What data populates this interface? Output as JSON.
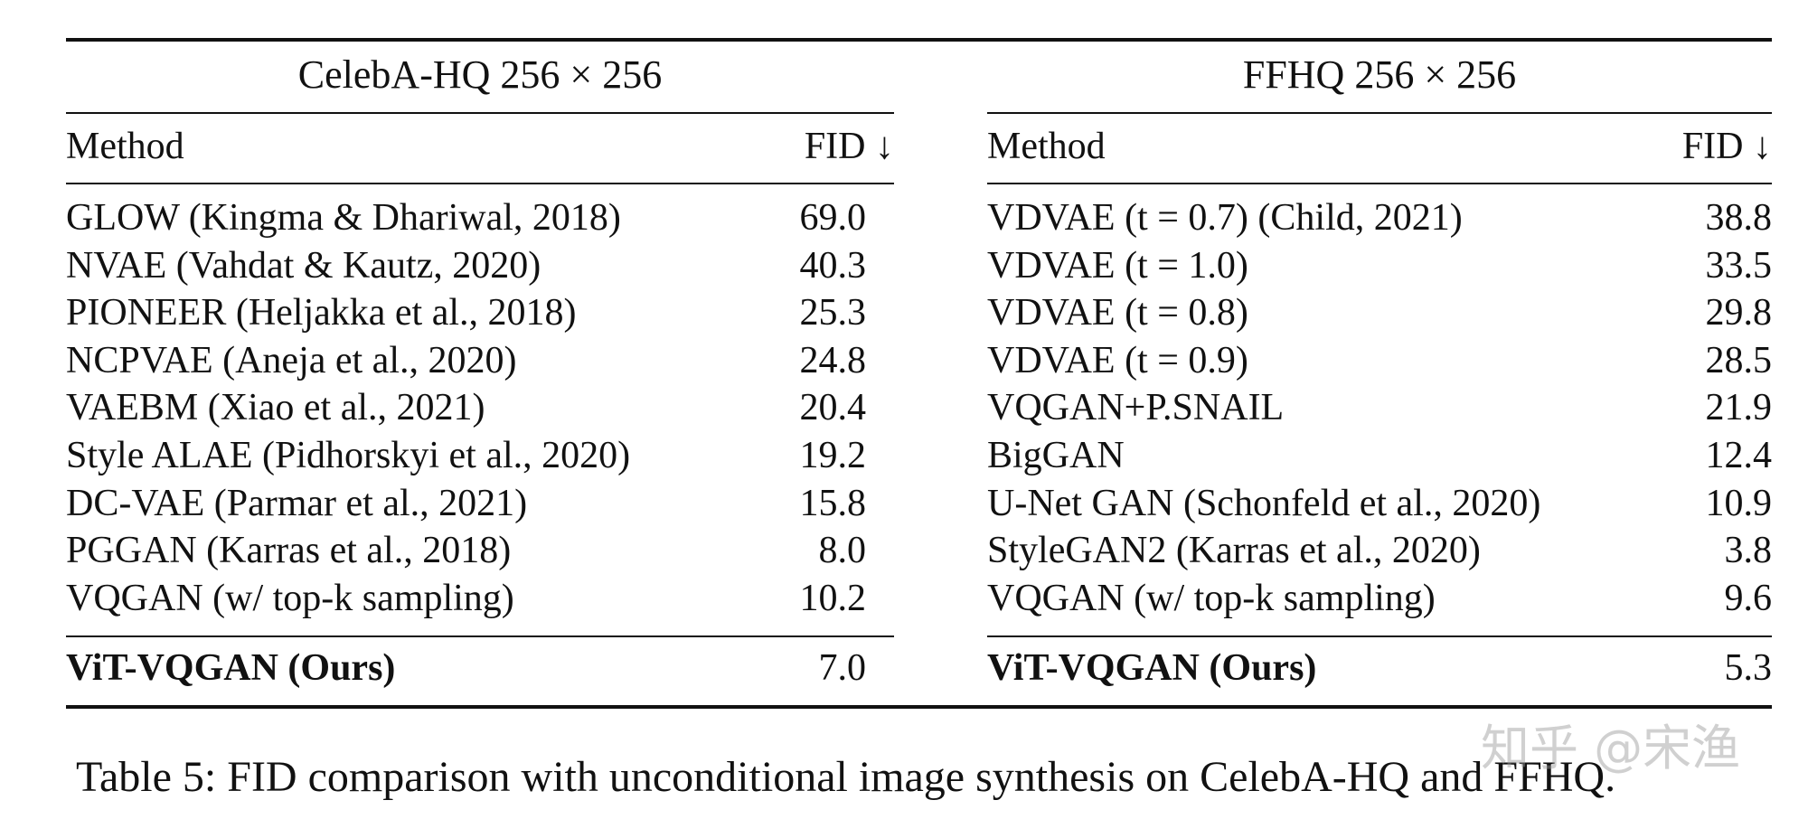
{
  "left_table": {
    "title": "CelebA-HQ 256 × 256",
    "col_method": "Method",
    "col_fid": "FID ↓",
    "rows": [
      {
        "method": "GLOW (Kingma & Dhariwal, 2018)",
        "fid": "69.0"
      },
      {
        "method": "NVAE (Vahdat & Kautz, 2020)",
        "fid": "40.3"
      },
      {
        "method": "PIONEER (Heljakka et al., 2018)",
        "fid": "25.3"
      },
      {
        "method": "NCPVAE (Aneja et al., 2020)",
        "fid": "24.8"
      },
      {
        "method": "VAEBM (Xiao et al., 2021)",
        "fid": "20.4"
      },
      {
        "method": "Style ALAE (Pidhorskyi et al., 2020)",
        "fid": "19.2"
      },
      {
        "method": "DC-VAE (Parmar et al., 2021)",
        "fid": "15.8"
      },
      {
        "method": "PGGAN (Karras et al., 2018)",
        "fid": "8.0"
      },
      {
        "method": "VQGAN (w/ top-k sampling)",
        "fid": "10.2"
      }
    ],
    "ours": {
      "method": "ViT-VQGAN (Ours)",
      "fid": "7.0"
    }
  },
  "right_table": {
    "title": "FFHQ 256 × 256",
    "col_method": "Method",
    "col_fid": "FID ↓",
    "rows": [
      {
        "method": "VDVAE (t = 0.7) (Child, 2021)",
        "fid": "38.8"
      },
      {
        "method": "VDVAE (t = 1.0)",
        "fid": "33.5"
      },
      {
        "method": "VDVAE (t = 0.8)",
        "fid": "29.8"
      },
      {
        "method": "VDVAE (t = 0.9)",
        "fid": "28.5"
      },
      {
        "method": "VQGAN+P.SNAIL",
        "fid": "21.9"
      },
      {
        "method": "BigGAN",
        "fid": "12.4"
      },
      {
        "method": "U-Net GAN (Schonfeld et al., 2020)",
        "fid": "10.9"
      },
      {
        "method": "StyleGAN2 (Karras et al., 2020)",
        "fid": "3.8"
      },
      {
        "method": "VQGAN (w/ top-k sampling)",
        "fid": "9.6"
      }
    ],
    "ours": {
      "method": "ViT-VQGAN (Ours)",
      "fid": "5.3"
    }
  },
  "caption": "Table 5: FID comparison with unconditional image synthesis on CelebA-HQ and FFHQ.",
  "watermark": "知乎 @宋渔"
}
